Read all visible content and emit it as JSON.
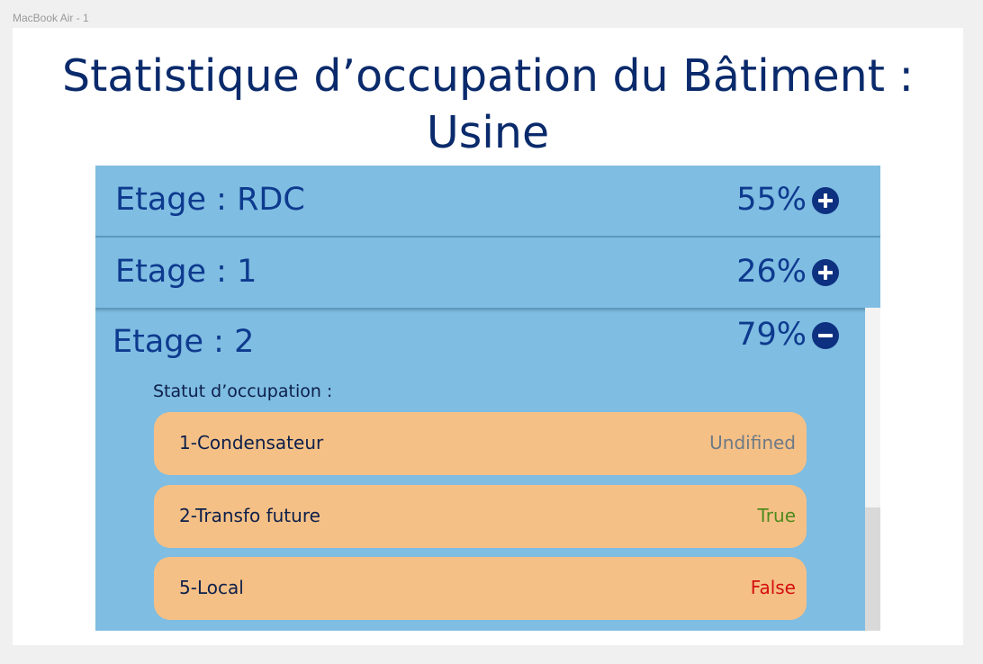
{
  "frame_label": "MacBook Air - 1",
  "title_line1": "Statistique d’occupation du Bâtiment :",
  "title_line2": "Usine",
  "floors": [
    {
      "label": "Etage : RDC",
      "pct": "55%",
      "state": "collapsed",
      "icon": "plus-circle-icon"
    },
    {
      "label": "Etage : 1",
      "pct": "26%",
      "state": "collapsed",
      "icon": "plus-circle-icon"
    },
    {
      "label": "Etage : 2",
      "pct": "79%",
      "state": "expanded",
      "icon": "minus-circle-icon"
    }
  ],
  "status_heading": "Statut d’occupation :",
  "items": [
    {
      "name": "1-Condensateur",
      "status": "Undifined",
      "status_color": "#6e7a85"
    },
    {
      "name": "2-Transfo future",
      "status": "True",
      "status_color": "#4e8a1c"
    },
    {
      "name": "5-Local",
      "status": "False",
      "status_color": "#d40f0f"
    }
  ],
  "colors": {
    "title": "#0a2a6b",
    "panel": "#7fbde2",
    "item_bg": "#f5c086",
    "icon": "#0d3180"
  }
}
